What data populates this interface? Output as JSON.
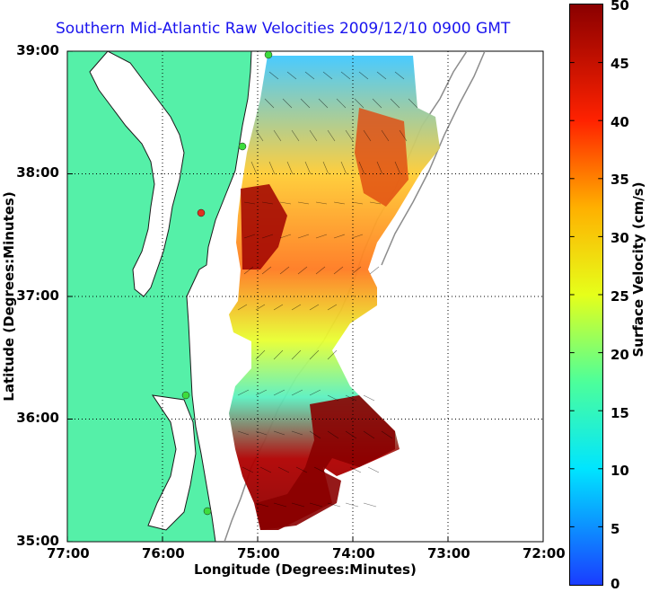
{
  "title": "Southern Mid-Atlantic Raw Velocities 2009/12/10 0900 GMT",
  "axes": {
    "xlabel": "Longitude (Degrees:Minutes)",
    "ylabel": "Latitude (Degrees:Minutes)",
    "x_ticks": [
      "77:00",
      "76:00",
      "75:00",
      "74:00",
      "73:00",
      "72:00"
    ],
    "y_ticks": [
      "39:00",
      "38:00",
      "37:00",
      "36:00",
      "35:00"
    ],
    "xlim": [
      -77,
      -72
    ],
    "ylim": [
      35,
      39
    ],
    "grid": "dotted"
  },
  "colorbar": {
    "label": "Surface Velocity (cm/s)",
    "ticks": [
      "50",
      "45",
      "40",
      "35",
      "30",
      "25",
      "20",
      "15",
      "10",
      "5",
      "0"
    ],
    "range": [
      0,
      50
    ]
  },
  "colors": {
    "land": "#55f0a8",
    "water": "#ffffff",
    "title": "#1a14ee",
    "station": "#3ddc3d",
    "bathymetry": "#8c8c8c"
  }
}
